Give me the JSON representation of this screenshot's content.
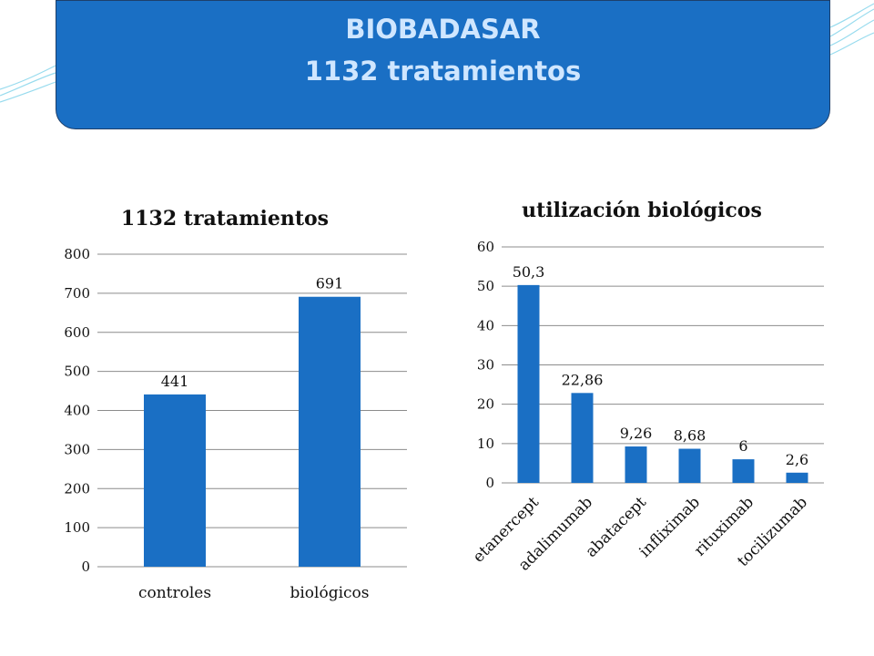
{
  "header": {
    "line1": "BIOBADASAR",
    "line2": "1132 tratamientos"
  },
  "colors": {
    "bar": "#1a6fc4",
    "title_box": "#1a6fc4",
    "title_text": "#cfe6ff",
    "decoration": "#7fd3ea"
  },
  "chart_data": [
    {
      "type": "bar",
      "title": "1132 tratamientos",
      "categories": [
        "controles",
        "biológicos"
      ],
      "values": [
        441,
        691
      ],
      "data_labels": [
        "441",
        "691"
      ],
      "yticks": [
        "0",
        "100",
        "200",
        "300",
        "400",
        "500",
        "600",
        "700",
        "800"
      ],
      "ylim": [
        0,
        800
      ],
      "grid": true
    },
    {
      "type": "bar",
      "title": "utilización biológicos",
      "categories": [
        "etanercept",
        "adalimumab",
        "abatacept",
        "infliximab",
        "rituximab",
        "tocilizumab"
      ],
      "values": [
        50.3,
        22.86,
        9.26,
        8.68,
        6,
        2.6
      ],
      "data_labels": [
        "50,3",
        "22,86",
        "9,26",
        "8,68",
        "6",
        "2,6"
      ],
      "yticks": [
        "0",
        "10",
        "20",
        "30",
        "40",
        "50",
        "60"
      ],
      "ylim": [
        0,
        60
      ],
      "grid": true
    }
  ]
}
